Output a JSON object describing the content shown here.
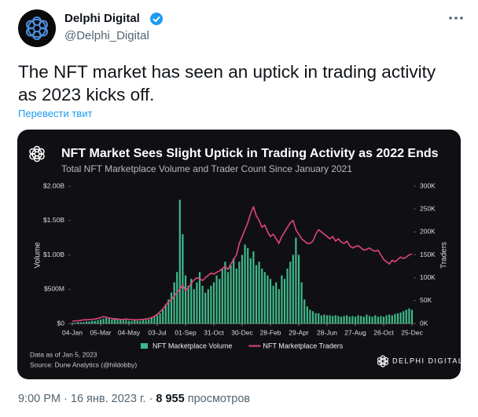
{
  "tweet": {
    "author": {
      "name": "Delphi Digital",
      "handle": "@Delphi_Digital"
    },
    "text": "The NFT market has seen an uptick in trading activity as 2023 kicks off.",
    "translate": "Перевести твит",
    "meta": {
      "time": "9:00 PM",
      "date": "16 янв. 2023 г.",
      "views": "8 955",
      "views_label": "просмотров"
    }
  },
  "chart_data": {
    "type": "bar-line",
    "title": "NFT Market Sees Slight Uptick in Trading Activity as 2022 Ends",
    "subtitle": "Total NFT Marketplace Volume and Trader Count Since January 2021",
    "ylabel": "Volume",
    "y2label": "Traders",
    "note": "Data as of Jan 5, 2023",
    "source": "Source: Dune Analytics (@hildobby)",
    "brand": "DELPHI DIGITAL",
    "categories": [
      "04-Jan",
      null,
      null,
      null,
      null,
      null,
      null,
      null,
      null,
      null,
      "05-Mar",
      null,
      null,
      null,
      null,
      null,
      null,
      null,
      null,
      null,
      "04-May",
      null,
      null,
      null,
      null,
      null,
      null,
      null,
      null,
      null,
      "03-Jul",
      null,
      null,
      null,
      null,
      null,
      null,
      null,
      null,
      null,
      "01-Sep",
      null,
      null,
      null,
      null,
      null,
      null,
      null,
      null,
      null,
      "31-Oct",
      null,
      null,
      null,
      null,
      null,
      null,
      null,
      null,
      null,
      "30-Dec",
      null,
      null,
      null,
      null,
      null,
      null,
      null,
      null,
      null,
      "28-Feb",
      null,
      null,
      null,
      null,
      null,
      null,
      null,
      null,
      null,
      "29-Apr",
      null,
      null,
      null,
      null,
      null,
      null,
      null,
      null,
      null,
      "28-Jun",
      null,
      null,
      null,
      null,
      null,
      null,
      null,
      null,
      null,
      "27-Aug",
      null,
      null,
      null,
      null,
      null,
      null,
      null,
      null,
      null,
      "26-Oct",
      null,
      null,
      null,
      null,
      null,
      null,
      null,
      null,
      null,
      "25-Dec"
    ],
    "series": [
      {
        "name": "NFT Marketplace Volume",
        "color": "#3fb98a",
        "kind": "bar",
        "values": [
          0.01,
          0.01,
          0.02,
          0.02,
          0.02,
          0.03,
          0.03,
          0.04,
          0.04,
          0.05,
          0.06,
          0.07,
          0.08,
          0.07,
          0.06,
          0.08,
          0.07,
          0.06,
          0.05,
          0.05,
          0.04,
          0.04,
          0.05,
          0.04,
          0.04,
          0.05,
          0.05,
          0.06,
          0.08,
          0.1,
          0.12,
          0.15,
          0.2,
          0.28,
          0.35,
          0.45,
          0.6,
          0.75,
          1.8,
          1.3,
          0.7,
          0.55,
          0.65,
          0.5,
          0.6,
          0.75,
          0.55,
          0.45,
          0.5,
          0.55,
          0.6,
          0.7,
          0.65,
          0.8,
          0.9,
          0.75,
          0.85,
          0.95,
          0.8,
          0.9,
          1.0,
          1.15,
          1.1,
          0.95,
          1.05,
          0.85,
          0.9,
          0.8,
          0.75,
          0.7,
          0.65,
          0.55,
          0.6,
          0.5,
          0.7,
          0.65,
          0.8,
          0.9,
          1.0,
          1.25,
          1.0,
          0.6,
          0.35,
          0.25,
          0.2,
          0.18,
          0.15,
          0.15,
          0.12,
          0.13,
          0.12,
          0.12,
          0.11,
          0.12,
          0.11,
          0.1,
          0.11,
          0.12,
          0.1,
          0.11,
          0.1,
          0.12,
          0.11,
          0.1,
          0.13,
          0.11,
          0.1,
          0.12,
          0.1,
          0.11,
          0.1,
          0.12,
          0.13,
          0.12,
          0.14,
          0.15,
          0.16,
          0.18,
          0.2,
          0.22,
          0.2
        ]
      },
      {
        "name": "NFT Marketplace Traders",
        "color": "#e0457b",
        "kind": "line",
        "axis": "y2",
        "values": [
          5,
          6,
          6,
          7,
          8,
          8,
          9,
          9,
          10,
          11,
          13,
          15,
          14,
          12,
          11,
          10,
          10,
          9,
          9,
          10,
          9,
          9,
          8,
          8,
          9,
          9,
          10,
          11,
          13,
          16,
          20,
          26,
          32,
          40,
          48,
          52,
          60,
          68,
          75,
          85,
          72,
          78,
          88,
          95,
          100,
          98,
          94,
          100,
          105,
          110,
          108,
          112,
          115,
          120,
          125,
          118,
          130,
          140,
          150,
          175,
          190,
          205,
          220,
          240,
          255,
          235,
          225,
          210,
          215,
          200,
          190,
          195,
          185,
          175,
          190,
          200,
          210,
          220,
          225,
          205,
          195,
          185,
          180,
          175,
          175,
          180,
          195,
          205,
          200,
          195,
          190,
          185,
          190,
          180,
          185,
          178,
          175,
          180,
          170,
          165,
          168,
          170,
          165,
          160,
          162,
          165,
          160,
          158,
          160,
          150,
          140,
          135,
          130,
          138,
          135,
          140,
          145,
          142,
          145,
          150,
          152
        ]
      }
    ],
    "ylim": [
      0,
      2
    ],
    "yticks": [
      {
        "value": 0,
        "label": "$0"
      },
      {
        "value": 0.5,
        "label": "$500M"
      },
      {
        "value": 1,
        "label": "$1.00B"
      },
      {
        "value": 1.5,
        "label": "$1.50B"
      },
      {
        "value": 2,
        "label": "$2.00B"
      }
    ],
    "y2lim": [
      0,
      300
    ],
    "y2ticks": [
      {
        "value": 0,
        "label": "0K"
      },
      {
        "value": 50,
        "label": "50K"
      },
      {
        "value": 100,
        "label": "100K"
      },
      {
        "value": 150,
        "label": "150K"
      },
      {
        "value": 200,
        "label": "200K"
      },
      {
        "value": 250,
        "label": "250K"
      },
      {
        "value": 300,
        "label": "300K"
      }
    ],
    "grid": false
  }
}
